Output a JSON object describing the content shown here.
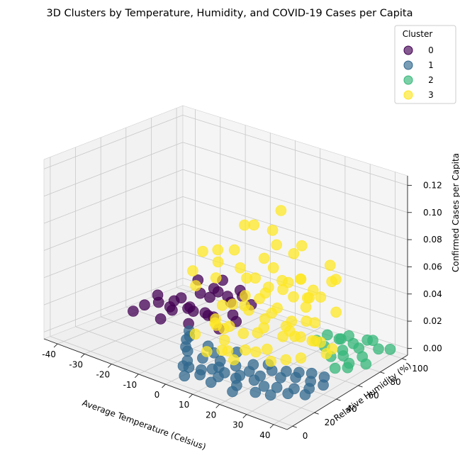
{
  "chart_data": {
    "type": "scatter",
    "projection": "3d",
    "title": "3D Clusters by Temperature, Humidity, and COVID-19 Cases per Capita",
    "xlabel": "Average Temperature (Celsius)",
    "ylabel": "Relative Humidity (%)",
    "zlabel": "Confirmed Cases per Capita",
    "x_ticks": [
      -40,
      -30,
      -20,
      -10,
      0,
      10,
      20,
      30,
      40
    ],
    "y_ticks": [
      0,
      20,
      40,
      60,
      80,
      100
    ],
    "z_ticks": [
      "0.00",
      "0.02",
      "0.04",
      "0.06",
      "0.08",
      "0.10",
      "0.12"
    ],
    "xlim": [
      -45,
      45
    ],
    "ylim": [
      -5,
      105
    ],
    "zlim": [
      -0.005,
      0.127
    ],
    "grid": true,
    "legend": {
      "title": "Cluster",
      "placement": "top-right",
      "entries": [
        {
          "label": "0",
          "color": "#440154"
        },
        {
          "label": "1",
          "color": "#31688e"
        },
        {
          "label": "2",
          "color": "#35b779"
        },
        {
          "label": "3",
          "color": "#fde725"
        }
      ]
    },
    "series": [
      {
        "name": "0",
        "color": "#440154",
        "points": [
          {
            "x": -35,
            "y": 45,
            "z": 0.004
          },
          {
            "x": -33,
            "y": 50,
            "z": 0.008
          },
          {
            "x": -30,
            "y": 55,
            "z": 0.01
          },
          {
            "x": -28,
            "y": 60,
            "z": 0.006
          },
          {
            "x": -26,
            "y": 65,
            "z": 0.012
          },
          {
            "x": -25,
            "y": 70,
            "z": 0.004
          },
          {
            "x": -24,
            "y": 55,
            "z": 0.015
          },
          {
            "x": -22,
            "y": 62,
            "z": 0.008
          },
          {
            "x": -20,
            "y": 68,
            "z": 0.018
          },
          {
            "x": -20,
            "y": 72,
            "z": 0.002
          },
          {
            "x": -18,
            "y": 58,
            "z": 0.01
          },
          {
            "x": -18,
            "y": 75,
            "z": 0.02
          },
          {
            "x": -16,
            "y": 66,
            "z": 0.005
          },
          {
            "x": -15,
            "y": 80,
            "z": 0.014
          },
          {
            "x": -14,
            "y": 70,
            "z": 0.022
          },
          {
            "x": -12,
            "y": 62,
            "z": 0.008
          },
          {
            "x": -12,
            "y": 78,
            "z": 0.003
          },
          {
            "x": -10,
            "y": 72,
            "z": 0.016
          },
          {
            "x": -8,
            "y": 85,
            "z": 0.01
          },
          {
            "x": -6,
            "y": 68,
            "z": 0.006
          },
          {
            "x": -27,
            "y": 48,
            "z": 0.02
          },
          {
            "x": -30,
            "y": 66,
            "z": 0.0
          },
          {
            "x": -22,
            "y": 80,
            "z": 0.009
          },
          {
            "x": -17,
            "y": 52,
            "z": 0.004
          },
          {
            "x": -13,
            "y": 88,
            "z": 0.012
          },
          {
            "x": -24,
            "y": 44,
            "z": 0.006
          },
          {
            "x": -9,
            "y": 60,
            "z": 0.002
          },
          {
            "x": -19,
            "y": 64,
            "z": 0.03
          },
          {
            "x": -16,
            "y": 78,
            "z": 0.026
          },
          {
            "x": -11,
            "y": 82,
            "z": 0.02
          }
        ]
      },
      {
        "name": "1",
        "color": "#31688e",
        "points": [
          {
            "x": 0,
            "y": 10,
            "z": 0.002
          },
          {
            "x": 3,
            "y": 8,
            "z": 0.004
          },
          {
            "x": 5,
            "y": 14,
            "z": 0.001
          },
          {
            "x": 8,
            "y": 6,
            "z": 0.003
          },
          {
            "x": 10,
            "y": 12,
            "z": 0.006
          },
          {
            "x": 12,
            "y": 18,
            "z": 0.002
          },
          {
            "x": 14,
            "y": 8,
            "z": 0.005
          },
          {
            "x": 16,
            "y": 22,
            "z": 0.001
          },
          {
            "x": 18,
            "y": 14,
            "z": 0.004
          },
          {
            "x": 20,
            "y": 10,
            "z": 0.002
          },
          {
            "x": 22,
            "y": 26,
            "z": 0.003
          },
          {
            "x": 24,
            "y": 16,
            "z": 0.006
          },
          {
            "x": 26,
            "y": 20,
            "z": 0.001
          },
          {
            "x": 28,
            "y": 30,
            "z": 0.004
          },
          {
            "x": 30,
            "y": 22,
            "z": 0.002
          },
          {
            "x": 32,
            "y": 34,
            "z": 0.005
          },
          {
            "x": 34,
            "y": 28,
            "z": 0.001
          },
          {
            "x": 36,
            "y": 38,
            "z": 0.003
          },
          {
            "x": 38,
            "y": 32,
            "z": 0.002
          },
          {
            "x": 6,
            "y": 28,
            "z": 0.002
          },
          {
            "x": 2,
            "y": 22,
            "z": 0.004
          },
          {
            "x": -2,
            "y": 18,
            "z": 0.001
          },
          {
            "x": -5,
            "y": 25,
            "z": 0.003
          },
          {
            "x": -8,
            "y": 30,
            "z": 0.002
          },
          {
            "x": -10,
            "y": 35,
            "z": 0.004
          },
          {
            "x": 11,
            "y": 30,
            "z": 0.001
          },
          {
            "x": 15,
            "y": 36,
            "z": 0.002
          },
          {
            "x": 19,
            "y": 40,
            "z": 0.003
          },
          {
            "x": 25,
            "y": 42,
            "z": 0.001
          },
          {
            "x": 29,
            "y": 44,
            "z": 0.002
          },
          {
            "x": 33,
            "y": 46,
            "z": 0.003
          },
          {
            "x": 37,
            "y": 48,
            "z": 0.002
          },
          {
            "x": 7,
            "y": 40,
            "z": 0.004
          },
          {
            "x": 1,
            "y": 34,
            "z": 0.002
          },
          {
            "x": -4,
            "y": 40,
            "z": 0.001
          },
          {
            "x": 13,
            "y": 4,
            "z": 0.002
          },
          {
            "x": 21,
            "y": 4,
            "z": 0.001
          },
          {
            "x": 27,
            "y": 10,
            "z": 0.002
          },
          {
            "x": 31,
            "y": 14,
            "z": 0.001
          },
          {
            "x": 35,
            "y": 20,
            "z": 0.002
          },
          {
            "x": 39,
            "y": 26,
            "z": 0.001
          },
          {
            "x": 9,
            "y": 20,
            "z": 0.003
          },
          {
            "x": 17,
            "y": 28,
            "z": 0.002
          },
          {
            "x": 23,
            "y": 34,
            "z": 0.004
          },
          {
            "x": 4,
            "y": 2,
            "z": 0.001
          },
          {
            "x": -12,
            "y": 42,
            "z": 0.002
          },
          {
            "x": -14,
            "y": 46,
            "z": 0.003
          },
          {
            "x": 40,
            "y": 40,
            "z": 0.002
          }
        ]
      },
      {
        "name": "2",
        "color": "#35b779",
        "points": [
          {
            "x": 20,
            "y": 80,
            "z": 0.003
          },
          {
            "x": 22,
            "y": 85,
            "z": 0.006
          },
          {
            "x": 24,
            "y": 78,
            "z": 0.002
          },
          {
            "x": 26,
            "y": 88,
            "z": 0.004
          },
          {
            "x": 28,
            "y": 82,
            "z": 0.008
          },
          {
            "x": 30,
            "y": 90,
            "z": 0.002
          },
          {
            "x": 32,
            "y": 76,
            "z": 0.005
          },
          {
            "x": 34,
            "y": 86,
            "z": 0.003
          },
          {
            "x": 36,
            "y": 94,
            "z": 0.006
          },
          {
            "x": 38,
            "y": 80,
            "z": 0.002
          },
          {
            "x": 40,
            "y": 90,
            "z": 0.004
          },
          {
            "x": 42,
            "y": 96,
            "z": 0.002
          },
          {
            "x": 30,
            "y": 70,
            "z": 0.002
          },
          {
            "x": 34,
            "y": 72,
            "z": 0.004
          },
          {
            "x": 38,
            "y": 68,
            "z": 0.003
          },
          {
            "x": 42,
            "y": 74,
            "z": 0.002
          },
          {
            "x": 40,
            "y": 62,
            "z": 0.004
          },
          {
            "x": 36,
            "y": 60,
            "z": 0.002
          },
          {
            "x": 26,
            "y": 95,
            "z": 0.003
          },
          {
            "x": 32,
            "y": 98,
            "z": 0.002
          }
        ]
      },
      {
        "name": "3",
        "color": "#fde725",
        "points": [
          {
            "x": -10,
            "y": 60,
            "z": 0.004
          },
          {
            "x": -8,
            "y": 55,
            "z": 0.012
          },
          {
            "x": -6,
            "y": 65,
            "z": 0.02
          },
          {
            "x": -4,
            "y": 58,
            "z": 0.008
          },
          {
            "x": -2,
            "y": 70,
            "z": 0.016
          },
          {
            "x": 0,
            "y": 62,
            "z": 0.024
          },
          {
            "x": 2,
            "y": 75,
            "z": 0.01
          },
          {
            "x": 4,
            "y": 66,
            "z": 0.03
          },
          {
            "x": 6,
            "y": 72,
            "z": 0.018
          },
          {
            "x": 8,
            "y": 80,
            "z": 0.006
          },
          {
            "x": 10,
            "y": 68,
            "z": 0.026
          },
          {
            "x": 12,
            "y": 76,
            "z": 0.014
          },
          {
            "x": 14,
            "y": 84,
            "z": 0.022
          },
          {
            "x": 16,
            "y": 70,
            "z": 0.008
          },
          {
            "x": 18,
            "y": 78,
            "z": 0.034
          },
          {
            "x": 20,
            "y": 66,
            "z": 0.012
          },
          {
            "x": 22,
            "y": 74,
            "z": 0.02
          },
          {
            "x": 24,
            "y": 62,
            "z": 0.028
          },
          {
            "x": 26,
            "y": 70,
            "z": 0.01
          },
          {
            "x": 28,
            "y": 58,
            "z": 0.018
          },
          {
            "x": 30,
            "y": 66,
            "z": 0.006
          },
          {
            "x": 5,
            "y": 50,
            "z": 0.012
          },
          {
            "x": 8,
            "y": 45,
            "z": 0.004
          },
          {
            "x": 12,
            "y": 52,
            "z": 0.02
          },
          {
            "x": 15,
            "y": 48,
            "z": 0.008
          },
          {
            "x": 18,
            "y": 55,
            "z": 0.016
          },
          {
            "x": 0,
            "y": 45,
            "z": 0.006
          },
          {
            "x": -5,
            "y": 48,
            "z": 0.014
          },
          {
            "x": 3,
            "y": 56,
            "z": 0.036
          },
          {
            "x": 9,
            "y": 60,
            "z": 0.04
          },
          {
            "x": 14,
            "y": 64,
            "z": 0.044
          },
          {
            "x": 20,
            "y": 72,
            "z": 0.038
          },
          {
            "x": -1,
            "y": 66,
            "z": 0.042
          },
          {
            "x": 6,
            "y": 58,
            "z": 0.05
          },
          {
            "x": 11,
            "y": 70,
            "z": 0.046
          },
          {
            "x": 17,
            "y": 62,
            "z": 0.052
          },
          {
            "x": 24,
            "y": 68,
            "z": 0.048
          },
          {
            "x": 2,
            "y": 78,
            "z": 0.032
          },
          {
            "x": 10,
            "y": 82,
            "z": 0.028
          },
          {
            "x": -12,
            "y": 64,
            "z": 0.036
          },
          {
            "x": -14,
            "y": 70,
            "z": 0.044
          },
          {
            "x": -16,
            "y": 74,
            "z": 0.05
          },
          {
            "x": -20,
            "y": 70,
            "z": 0.048
          },
          {
            "x": 4,
            "y": 70,
            "z": 0.058
          },
          {
            "x": 13,
            "y": 58,
            "z": 0.062
          },
          {
            "x": 21,
            "y": 64,
            "z": 0.056
          },
          {
            "x": 7,
            "y": 74,
            "z": 0.068
          },
          {
            "x": -3,
            "y": 60,
            "z": 0.064
          },
          {
            "x": 16,
            "y": 76,
            "z": 0.072
          },
          {
            "x": 0,
            "y": 70,
            "z": 0.08
          },
          {
            "x": 10,
            "y": 64,
            "z": 0.085
          },
          {
            "x": 6,
            "y": 80,
            "z": 0.09
          },
          {
            "x": 20,
            "y": 60,
            "z": 0.076
          },
          {
            "x": -6,
            "y": 75,
            "z": 0.074
          },
          {
            "x": 28,
            "y": 74,
            "z": 0.066
          },
          {
            "x": 32,
            "y": 70,
            "z": 0.06
          },
          {
            "x": 26,
            "y": 80,
            "z": 0.05
          },
          {
            "x": 8,
            "y": 30,
            "z": 0.01
          },
          {
            "x": 4,
            "y": 34,
            "z": 0.006
          },
          {
            "x": 12,
            "y": 26,
            "z": 0.008
          },
          {
            "x": 16,
            "y": 36,
            "z": 0.012
          },
          {
            "x": 0,
            "y": 30,
            "z": 0.004
          },
          {
            "x": 20,
            "y": 40,
            "z": 0.006
          },
          {
            "x": 24,
            "y": 44,
            "z": 0.008
          },
          {
            "x": 28,
            "y": 48,
            "z": 0.01
          },
          {
            "x": -8,
            "y": 38,
            "z": 0.008
          },
          {
            "x": 2,
            "y": 40,
            "z": 0.018
          },
          {
            "x": 14,
            "y": 42,
            "z": 0.022
          },
          {
            "x": -4,
            "y": 52,
            "z": 0.026
          },
          {
            "x": 22,
            "y": 52,
            "z": 0.024
          },
          {
            "x": 30,
            "y": 56,
            "z": 0.02
          },
          {
            "x": 34,
            "y": 62,
            "z": 0.014
          },
          {
            "x": -18,
            "y": 60,
            "z": 0.028
          },
          {
            "x": -22,
            "y": 66,
            "z": 0.034
          },
          {
            "x": 11,
            "y": 86,
            "z": 0.04
          },
          {
            "x": 18,
            "y": 88,
            "z": 0.03
          },
          {
            "x": 25,
            "y": 86,
            "z": 0.024
          },
          {
            "x": -10,
            "y": 80,
            "z": 0.038
          }
        ]
      }
    ]
  }
}
